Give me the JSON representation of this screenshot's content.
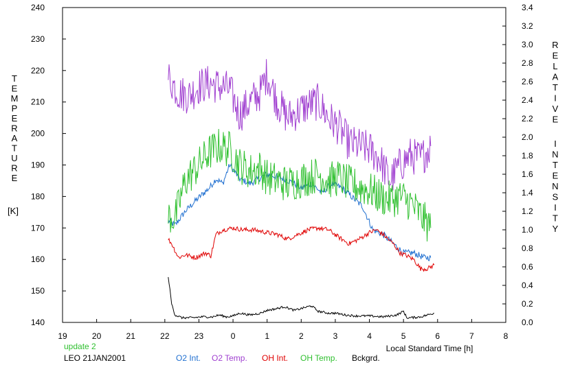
{
  "chart_data": {
    "type": "line",
    "xlabel": "Local Standard Time [h]",
    "x_ticks": [
      "19",
      "20",
      "21",
      "22",
      "23",
      "0",
      "1",
      "2",
      "3",
      "4",
      "5",
      "6",
      "7",
      "8"
    ],
    "xlim": [
      19,
      32
    ],
    "left_axis": {
      "label_letters": [
        "T",
        "E",
        "M",
        "P",
        "E",
        "R",
        "A",
        "T",
        "U",
        "R",
        "E"
      ],
      "unit": "[K]",
      "ylim": [
        140,
        240
      ],
      "ticks": [
        "140",
        "150",
        "160",
        "170",
        "180",
        "190",
        "200",
        "210",
        "220",
        "230",
        "240"
      ]
    },
    "right_axis": {
      "label_word1": [
        "R",
        "E",
        "L",
        "A",
        "T",
        "I",
        "V",
        "E"
      ],
      "label_word2": [
        "I",
        "N",
        "T",
        "E",
        "N",
        "S",
        "I",
        "T",
        "Y"
      ],
      "ylim": [
        0,
        3.4
      ],
      "ticks": [
        "0.0",
        "0.2",
        "0.4",
        "0.6",
        "0.8",
        "1.0",
        "1.2",
        "1.4",
        "1.6",
        "1.8",
        "2.0",
        "2.2",
        "2.4",
        "2.6",
        "2.8",
        "3.0",
        "3.2",
        "3.4"
      ]
    },
    "series": [
      {
        "name": "O2 Int.",
        "color": "#1f6fd0",
        "axis": "right",
        "x": [
          22.1,
          22.3,
          22.6,
          23.0,
          23.3,
          23.5,
          23.7,
          23.9,
          24.2,
          24.5,
          25.0,
          25.5,
          25.8,
          26.0,
          26.3,
          26.6,
          26.9,
          27.2,
          27.5,
          27.8,
          28.1,
          28.4,
          28.7,
          29.0,
          29.3,
          29.6,
          29.8
        ],
        "y": [
          1.1,
          1.05,
          1.2,
          1.35,
          1.45,
          1.55,
          1.5,
          1.7,
          1.55,
          1.5,
          1.6,
          1.55,
          1.5,
          1.45,
          1.5,
          1.4,
          1.5,
          1.45,
          1.35,
          1.25,
          1.0,
          0.95,
          0.85,
          0.75,
          0.75,
          0.7,
          0.7
        ]
      },
      {
        "name": "O2 Temp.",
        "color": "#a040d0",
        "axis": "left",
        "x": [
          22.1,
          22.4,
          22.7,
          23.0,
          23.3,
          23.6,
          23.9,
          24.2,
          24.5,
          24.8,
          25.0,
          25.3,
          25.6,
          25.9,
          26.2,
          26.5,
          26.8,
          27.1,
          27.4,
          27.7,
          28.0,
          28.3,
          28.6,
          28.9,
          29.2,
          29.5,
          29.8
        ],
        "y": [
          218,
          213,
          212,
          215,
          216,
          215,
          214,
          206,
          210,
          213,
          219,
          210,
          205,
          207,
          209,
          210,
          205,
          202,
          197,
          196,
          195,
          192,
          185,
          190,
          193,
          192,
          196
        ]
      },
      {
        "name": "OH Int.",
        "color": "#e00000",
        "axis": "right",
        "x": [
          22.1,
          22.2,
          22.4,
          22.6,
          22.9,
          23.2,
          23.35,
          23.5,
          23.7,
          24.0,
          24.3,
          24.6,
          25.0,
          25.3,
          25.6,
          25.9,
          26.2,
          26.5,
          26.8,
          27.1,
          27.4,
          27.7,
          28.0,
          28.2,
          28.4,
          28.7,
          28.9,
          29.1,
          29.3,
          29.5,
          29.7,
          29.9
        ],
        "y": [
          0.9,
          0.85,
          0.7,
          0.73,
          0.7,
          0.75,
          0.72,
          0.95,
          1.0,
          1.02,
          1.0,
          1.0,
          0.97,
          0.95,
          0.9,
          0.95,
          1.0,
          1.02,
          1.0,
          0.92,
          0.85,
          0.9,
          0.97,
          1.0,
          0.95,
          0.85,
          0.75,
          0.72,
          0.68,
          0.58,
          0.58,
          0.62
        ]
      },
      {
        "name": "OH Temp.",
        "color": "#30c030",
        "axis": "left",
        "x": [
          22.1,
          22.3,
          22.6,
          23.0,
          23.3,
          23.6,
          23.9,
          24.2,
          24.5,
          24.8,
          25.0,
          25.3,
          25.6,
          25.9,
          26.2,
          26.5,
          26.8,
          27.1,
          27.4,
          27.7,
          28.0,
          28.3,
          28.6,
          28.9,
          29.2,
          29.5,
          29.8
        ],
        "y": [
          174,
          173,
          185,
          190,
          194,
          196,
          195,
          190,
          188,
          189,
          186,
          185,
          184,
          185,
          186,
          187,
          185,
          186,
          184,
          183,
          182,
          180,
          179,
          180,
          178,
          174,
          170
        ]
      },
      {
        "name": "Bckgrd.",
        "color": "#000000",
        "axis": "right",
        "x": [
          22.1,
          22.15,
          22.2,
          22.3,
          22.5,
          22.8,
          23.1,
          23.4,
          23.6,
          23.8,
          24.0,
          24.2,
          24.5,
          24.8,
          25.0,
          25.3,
          25.5,
          25.8,
          26.0,
          26.3,
          26.5,
          26.8,
          27.0,
          27.3,
          27.6,
          28.0,
          28.4,
          28.8,
          29.0,
          29.1,
          29.2,
          29.5,
          29.9
        ],
        "y": [
          0.5,
          0.35,
          0.2,
          0.08,
          0.05,
          0.05,
          0.06,
          0.06,
          0.08,
          0.06,
          0.07,
          0.1,
          0.08,
          0.1,
          0.13,
          0.15,
          0.17,
          0.13,
          0.15,
          0.18,
          0.12,
          0.1,
          0.1,
          0.08,
          0.07,
          0.07,
          0.06,
          0.08,
          0.12,
          0.05,
          0.05,
          0.06,
          0.1
        ]
      }
    ]
  },
  "footer": {
    "update": "update 2",
    "station": "LEO 21JAN2001",
    "update_color": "#30c030"
  },
  "legend": [
    {
      "label": "O2 Int.",
      "color": "#1f6fd0"
    },
    {
      "label": "O2 Temp.",
      "color": "#a040d0"
    },
    {
      "label": "OH Int.",
      "color": "#e00000"
    },
    {
      "label": "OH Temp.",
      "color": "#30c030"
    },
    {
      "label": "Bckgrd.",
      "color": "#000000"
    }
  ]
}
